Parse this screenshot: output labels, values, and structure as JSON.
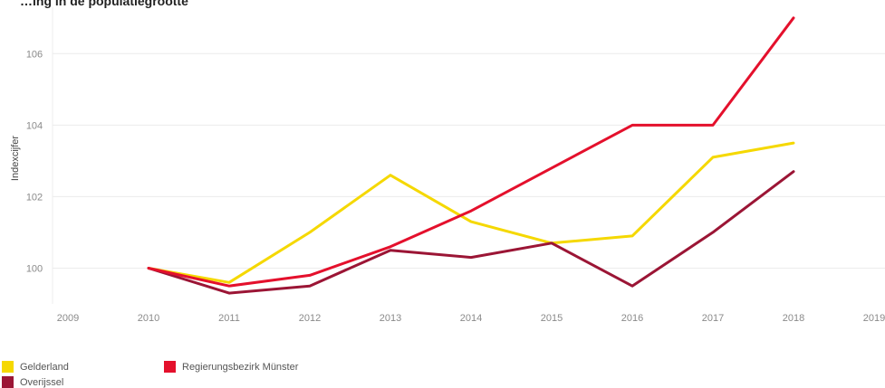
{
  "chart_title": "…ing in de populatiegrootte",
  "chart_data": {
    "type": "line",
    "title": "…ing in de populatiegrootte",
    "xlabel": "",
    "ylabel": "Indexcijfer",
    "x": [
      2010,
      2011,
      2012,
      2013,
      2014,
      2015,
      2016,
      2017,
      2018
    ],
    "xlim": [
      2009,
      2019
    ],
    "x_ticks": [
      "2009",
      "2010",
      "2011",
      "2012",
      "2013",
      "2014",
      "2015",
      "2016",
      "2017",
      "2018",
      "2019"
    ],
    "ylim": [
      99.0,
      107.5
    ],
    "y_ticks": [
      "100",
      "102",
      "104",
      "106"
    ],
    "grid": true,
    "legend_position": "bottom-left",
    "series": [
      {
        "name": "Gelderland",
        "color": "#f5d800",
        "values": [
          100.0,
          99.6,
          101.0,
          102.6,
          101.3,
          100.7,
          100.9,
          103.1,
          103.5
        ]
      },
      {
        "name": "Overijssel",
        "color": "#9b1535",
        "values": [
          100.0,
          99.3,
          99.5,
          100.5,
          100.3,
          100.7,
          99.5,
          101.0,
          102.7
        ]
      },
      {
        "name": "Regierungsbezirk Münster",
        "color": "#e4102c",
        "values": [
          100.0,
          99.5,
          99.8,
          100.6,
          101.6,
          102.8,
          104.0,
          104.0,
          107.0
        ]
      }
    ]
  }
}
